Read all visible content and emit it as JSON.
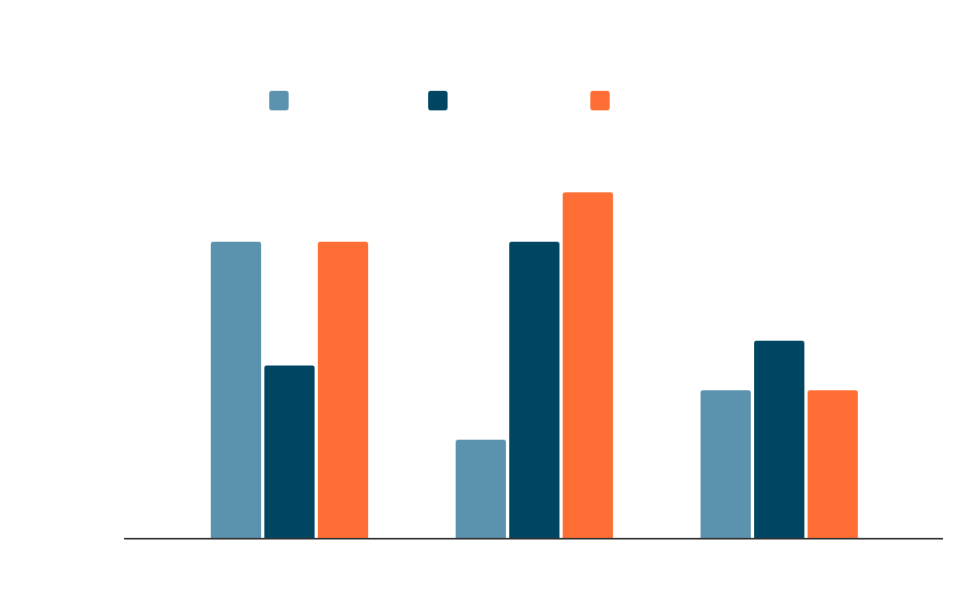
{
  "chart_data": {
    "type": "bar",
    "title": "",
    "xlabel": "",
    "ylabel": "",
    "categories": [
      "",
      "",
      ""
    ],
    "series": [
      {
        "color": "#5b92ae",
        "values": [
          6,
          2,
          3
        ]
      },
      {
        "color": "#004663",
        "values": [
          3.5,
          6,
          4
        ]
      },
      {
        "color": "#ff6f35",
        "values": [
          6,
          7,
          3
        ]
      }
    ],
    "ylim": [
      0,
      8
    ],
    "grid": false,
    "legend": {
      "position": "top-center"
    }
  }
}
